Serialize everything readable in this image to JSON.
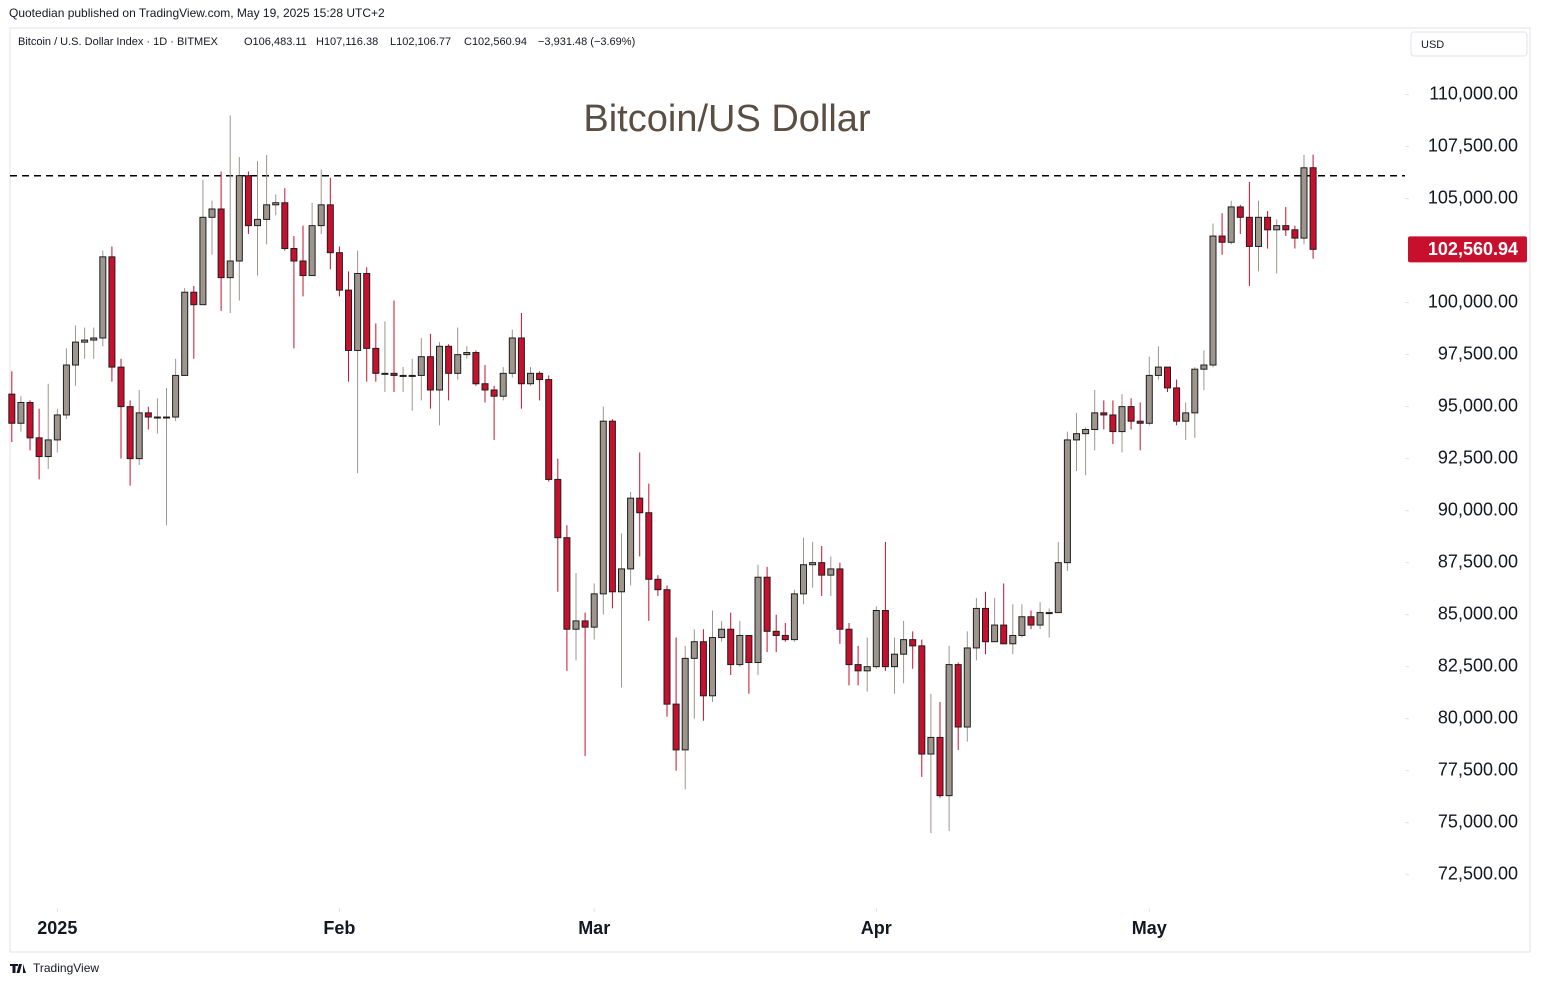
{
  "header": "Quotedian published on TradingView.com, May 19, 2025 15:28 UTC+2",
  "footer": "TradingView",
  "chart_data": {
    "type": "candlestick",
    "title": "Bitcoin/US Dollar",
    "legend": {
      "symbol": "Bitcoin / U.S. Dollar Index · 1D · BITMEX",
      "open": "O106,483.11",
      "high": "H107,116.38",
      "low": "L102,106.77",
      "close": "C102,560.94",
      "change": "−3,931.48 (−3.69%)"
    },
    "currency": "USD",
    "last_price_label": "102,560.94",
    "hline": 106100,
    "up_color": "#9e958c",
    "down_color": "#c8102e",
    "border_color": "#1e1e1e",
    "xlim": [
      -0.2,
      153.1
    ],
    "xticks": [
      {
        "value": 5,
        "label": "2025"
      },
      {
        "value": 36,
        "label": "Feb"
      },
      {
        "value": 64,
        "label": "Mar"
      },
      {
        "value": 95,
        "label": "Apr"
      },
      {
        "value": 125,
        "label": "May"
      }
    ],
    "ylim": [
      70900,
      113200
    ],
    "yticks": [
      {
        "value": 72500,
        "label": "72,500.00"
      },
      {
        "value": 75000,
        "label": "75,000.00"
      },
      {
        "value": 77500,
        "label": "77,500.00"
      },
      {
        "value": 80000,
        "label": "80,000.00"
      },
      {
        "value": 82500,
        "label": "82,500.00"
      },
      {
        "value": 85000,
        "label": "85,000.00"
      },
      {
        "value": 87500,
        "label": "87,500.00"
      },
      {
        "value": 90000,
        "label": "90,000.00"
      },
      {
        "value": 92500,
        "label": "92,500.00"
      },
      {
        "value": 95000,
        "label": "95,000.00"
      },
      {
        "value": 97500,
        "label": "97,500.00"
      },
      {
        "value": 100000,
        "label": "100,000.00"
      },
      {
        "value": 105000,
        "label": "105,000.00"
      },
      {
        "value": 107500,
        "label": "107,500.00"
      },
      {
        "value": 110000,
        "label": "110,000.00"
      }
    ],
    "ohlc": [
      [
        95600,
        96700,
        93300,
        94200
      ],
      [
        94200,
        95500,
        93800,
        95200
      ],
      [
        95200,
        95300,
        92900,
        93500
      ],
      [
        93500,
        94900,
        91500,
        92600
      ],
      [
        92600,
        96100,
        92000,
        93400
      ],
      [
        93400,
        94900,
        92800,
        94600
      ],
      [
        94600,
        97800,
        94400,
        97000
      ],
      [
        97000,
        98900,
        96000,
        98100
      ],
      [
        98100,
        98800,
        97300,
        98200
      ],
      [
        98200,
        98800,
        97300,
        98300
      ],
      [
        98300,
        102500,
        97900,
        102200
      ],
      [
        102200,
        102700,
        96200,
        96900
      ],
      [
        96900,
        97300,
        92500,
        95000
      ],
      [
        95000,
        95300,
        91200,
        92500
      ],
      [
        92500,
        95800,
        92200,
        94700
      ],
      [
        94700,
        95000,
        93900,
        94500
      ],
      [
        94500,
        95400,
        93700,
        94500
      ],
      [
        94500,
        95900,
        89300,
        94500
      ],
      [
        94500,
        97300,
        94300,
        96500
      ],
      [
        96500,
        100700,
        96500,
        100500
      ],
      [
        100500,
        100800,
        97300,
        99900
      ],
      [
        99900,
        105900,
        99900,
        104100
      ],
      [
        104100,
        104900,
        102300,
        104500
      ],
      [
        104500,
        106300,
        99600,
        101200
      ],
      [
        101200,
        109000,
        99500,
        102000
      ],
      [
        102000,
        107000,
        100100,
        106100
      ],
      [
        106100,
        106300,
        103300,
        103700
      ],
      [
        103700,
        106800,
        101300,
        104000
      ],
      [
        104000,
        107100,
        102800,
        104700
      ],
      [
        104700,
        105200,
        104200,
        104800
      ],
      [
        104800,
        105500,
        102500,
        102600
      ],
      [
        102600,
        103200,
        97800,
        102000
      ],
      [
        102000,
        103700,
        100300,
        101300
      ],
      [
        101300,
        104800,
        101300,
        103700
      ],
      [
        103700,
        106400,
        103300,
        104700
      ],
      [
        104700,
        106000,
        101600,
        102400
      ],
      [
        102400,
        102700,
        100300,
        100600
      ],
      [
        100600,
        101500,
        96200,
        97700
      ],
      [
        97700,
        102500,
        91800,
        101400
      ],
      [
        101400,
        101700,
        96200,
        97800
      ],
      [
        97800,
        99000,
        96200,
        96600
      ],
      [
        96600,
        99100,
        95700,
        96600
      ],
      [
        96600,
        100100,
        95700,
        96500
      ],
      [
        96500,
        96900,
        95700,
        96500
      ],
      [
        96500,
        97300,
        94800,
        96500
      ],
      [
        96500,
        98300,
        95300,
        97400
      ],
      [
        97400,
        98500,
        94900,
        95800
      ],
      [
        95800,
        98100,
        94100,
        97900
      ],
      [
        97900,
        98000,
        95300,
        96600
      ],
      [
        96600,
        98800,
        96300,
        97500
      ],
      [
        97500,
        97900,
        97300,
        97600
      ],
      [
        97600,
        97700,
        96000,
        96100
      ],
      [
        96100,
        97000,
        95200,
        95800
      ],
      [
        95800,
        96000,
        93400,
        95500
      ],
      [
        95500,
        96900,
        95300,
        96600
      ],
      [
        96600,
        98700,
        96400,
        98300
      ],
      [
        98300,
        99500,
        94900,
        96100
      ],
      [
        96100,
        96900,
        96000,
        96600
      ],
      [
        96600,
        96700,
        95300,
        96300
      ],
      [
        96300,
        96500,
        91400,
        91500
      ],
      [
        91500,
        92500,
        86100,
        88700
      ],
      [
        88700,
        89300,
        82300,
        84300
      ],
      [
        84300,
        87000,
        82800,
        84700
      ],
      [
        84700,
        85100,
        78200,
        84400
      ],
      [
        84400,
        86500,
        83800,
        86000
      ],
      [
        86000,
        95000,
        85000,
        94300
      ],
      [
        94300,
        94400,
        85300,
        86100
      ],
      [
        86100,
        88900,
        81500,
        87200
      ],
      [
        87200,
        90900,
        86400,
        90600
      ],
      [
        90600,
        92800,
        87800,
        89900
      ],
      [
        89900,
        91300,
        84700,
        86700
      ],
      [
        86700,
        86900,
        85900,
        86200
      ],
      [
        86200,
        86400,
        80100,
        80700
      ],
      [
        80700,
        83900,
        77500,
        78500
      ],
      [
        78500,
        83500,
        76600,
        82900
      ],
      [
        82900,
        84300,
        80000,
        83700
      ],
      [
        83700,
        84300,
        79900,
        81100
      ],
      [
        81100,
        85200,
        80800,
        83900
      ],
      [
        83900,
        84700,
        83700,
        84300
      ],
      [
        84300,
        85100,
        82100,
        82600
      ],
      [
        82600,
        84700,
        82500,
        84000
      ],
      [
        84000,
        84000,
        81200,
        82700
      ],
      [
        82700,
        87400,
        82100,
        86800
      ],
      [
        86800,
        87300,
        83200,
        84200
      ],
      [
        84200,
        85000,
        83200,
        84000
      ],
      [
        84000,
        84600,
        83700,
        83800
      ],
      [
        83800,
        86200,
        83700,
        86000
      ],
      [
        86000,
        88700,
        85500,
        87400
      ],
      [
        87400,
        88500,
        86300,
        87500
      ],
      [
        87500,
        88300,
        85900,
        86900
      ],
      [
        86900,
        87800,
        85900,
        87200
      ],
      [
        87200,
        87500,
        83600,
        84300
      ],
      [
        84300,
        84600,
        81600,
        82600
      ],
      [
        82600,
        83500,
        81600,
        82300
      ],
      [
        82300,
        83900,
        81300,
        82500
      ],
      [
        82500,
        85400,
        82400,
        85200
      ],
      [
        85200,
        88500,
        82300,
        82500
      ],
      [
        82500,
        83900,
        81200,
        83100
      ],
      [
        83100,
        84700,
        81700,
        83800
      ],
      [
        83800,
        84200,
        82400,
        83500
      ],
      [
        83500,
        83800,
        77200,
        78300
      ],
      [
        78300,
        81200,
        74500,
        79100
      ],
      [
        79100,
        80800,
        76200,
        76300
      ],
      [
        76300,
        83500,
        74600,
        82600
      ],
      [
        82600,
        82700,
        78500,
        79600
      ],
      [
        79600,
        84200,
        78900,
        83400
      ],
      [
        83400,
        85800,
        82800,
        85300
      ],
      [
        85300,
        86100,
        83100,
        83700
      ],
      [
        83700,
        85800,
        83700,
        84500
      ],
      [
        84500,
        86500,
        83600,
        83600
      ],
      [
        83600,
        85500,
        83100,
        84000
      ],
      [
        84000,
        85500,
        83900,
        84900
      ],
      [
        84900,
        85200,
        84300,
        84500
      ],
      [
        84500,
        85600,
        84300,
        85100
      ],
      [
        85100,
        85300,
        83900,
        85100
      ],
      [
        85100,
        88500,
        85100,
        87500
      ],
      [
        87500,
        93800,
        87100,
        93400
      ],
      [
        93400,
        94700,
        91900,
        93700
      ],
      [
        93700,
        94000,
        91700,
        93900
      ],
      [
        93900,
        95800,
        92900,
        94700
      ],
      [
        94700,
        95300,
        93900,
        94600
      ],
      [
        94600,
        95300,
        93200,
        93800
      ],
      [
        93800,
        95600,
        92800,
        95000
      ],
      [
        95000,
        95400,
        93900,
        94300
      ],
      [
        94300,
        95200,
        92900,
        94200
      ],
      [
        94200,
        97400,
        94100,
        96500
      ],
      [
        96500,
        97900,
        96300,
        96900
      ],
      [
        96900,
        96900,
        95700,
        95900
      ],
      [
        95900,
        96300,
        94100,
        94300
      ],
      [
        94300,
        95200,
        93400,
        94700
      ],
      [
        94700,
        96900,
        93500,
        96800
      ],
      [
        96800,
        97700,
        95800,
        97000
      ],
      [
        97000,
        103800,
        96900,
        103200
      ],
      [
        103200,
        104300,
        102300,
        102900
      ],
      [
        102900,
        104900,
        102800,
        104600
      ],
      [
        104600,
        104700,
        103300,
        104100
      ],
      [
        104100,
        105800,
        100800,
        102700
      ],
      [
        102700,
        104900,
        101500,
        104100
      ],
      [
        104100,
        104400,
        102600,
        103500
      ],
      [
        103500,
        104000,
        101400,
        103700
      ],
      [
        103700,
        104600,
        103200,
        103500
      ],
      [
        103500,
        103700,
        102600,
        103100
      ],
      [
        103100,
        107100,
        102800,
        106480
      ],
      [
        106483.11,
        107116.38,
        102106.77,
        102560.94
      ]
    ]
  }
}
